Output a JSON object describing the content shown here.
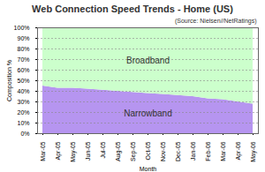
{
  "chart_data": {
    "type": "area",
    "title": "Web Connection Speed Trends - Home (US)",
    "annotation": "(Source: Nielsen//NetRatings)",
    "x_label": "Month",
    "y_label": "Composition %",
    "stacked": true,
    "grid": true,
    "categories": [
      "Mar-05",
      "Apr-05",
      "May-05",
      "Jun-05",
      "Jul-05",
      "Aug-05",
      "Sep-05",
      "Oct-05",
      "Nov-05",
      "Dec-05",
      "Jan-06",
      "Feb-06",
      "Mar-06",
      "Apr-06",
      "May-06"
    ],
    "series": [
      {
        "name": "Narrowband",
        "color": "#b695f0",
        "values": [
          45,
          43,
          43,
          42,
          41,
          40,
          39,
          38,
          37,
          36,
          35,
          33,
          32,
          30,
          28
        ]
      },
      {
        "name": "Broadband",
        "color": "#ccffcc",
        "values": [
          55,
          57,
          57,
          58,
          59,
          60,
          61,
          62,
          63,
          64,
          65,
          67,
          68,
          70,
          72
        ]
      }
    ],
    "ylim": [
      0,
      100
    ],
    "yticks": [
      {
        "value": 0,
        "label": "0%"
      },
      {
        "value": 10,
        "label": "10%"
      },
      {
        "value": 20,
        "label": "20%"
      },
      {
        "value": 30,
        "label": "30%"
      },
      {
        "value": 40,
        "label": "40%"
      },
      {
        "value": 50,
        "label": "50%"
      },
      {
        "value": 60,
        "label": "60%"
      },
      {
        "value": 70,
        "label": "70%"
      },
      {
        "value": 80,
        "label": "80%"
      },
      {
        "value": 90,
        "label": "90%"
      },
      {
        "value": 100,
        "label": "100%"
      }
    ]
  }
}
